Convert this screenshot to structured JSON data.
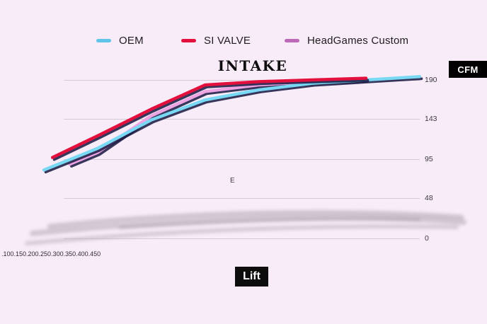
{
  "page": {
    "background": "#f9ecf9"
  },
  "title": "INTAKE",
  "legend": {
    "items": [
      {
        "label": "OEM",
        "color": "#5ec4e9"
      },
      {
        "label": "SI VALVE",
        "color": "#e30f3d"
      },
      {
        "label": "HeadGames Custom",
        "color": "#bd68b8"
      }
    ]
  },
  "y_axis": {
    "unit_label": "CFM",
    "ticks": [
      190,
      143,
      95,
      48,
      0
    ]
  },
  "x_axis": {
    "label": "Lift",
    "tick_text": ".100.150.200.250.300.350.400.450"
  },
  "annotation": {
    "text": "E"
  },
  "chart_data": {
    "type": "line",
    "title": "INTAKE",
    "xlabel": "Lift",
    "ylabel": "CFM",
    "x_ticks": [
      ".100",
      ".150",
      ".200",
      ".250",
      ".300",
      ".350",
      ".400",
      ".450"
    ],
    "y_ticks": [
      190,
      143,
      95,
      48,
      0
    ],
    "xlim": [
      0.1,
      0.45
    ],
    "ylim": [
      0,
      190
    ],
    "grid": true,
    "legend_position": "top",
    "series": [
      {
        "name": "OEM",
        "color": "#79d8f3",
        "legend_color": "#5ec4e9",
        "x": [
          0.1,
          0.15,
          0.2,
          0.25,
          0.3,
          0.35,
          0.4,
          0.45
        ],
        "values": [
          82,
          108,
          142,
          166,
          178,
          186,
          190,
          194
        ]
      },
      {
        "name": "SI VALVE",
        "color": "#e30f3d",
        "legend_color": "#e30f3d",
        "x": [
          0.108,
          0.15,
          0.2,
          0.25,
          0.3,
          0.35,
          0.4
        ],
        "values": [
          97,
          123,
          155,
          184,
          188,
          190,
          192
        ]
      },
      {
        "name": "HeadGames Custom",
        "color": "#eda4e2",
        "legend_color": "#bd68b8",
        "x": [
          0.124,
          0.15,
          0.2,
          0.25,
          0.3,
          0.35,
          0.4
        ],
        "values": [
          89,
          103,
          147,
          176,
          184,
          188,
          191
        ]
      }
    ]
  }
}
